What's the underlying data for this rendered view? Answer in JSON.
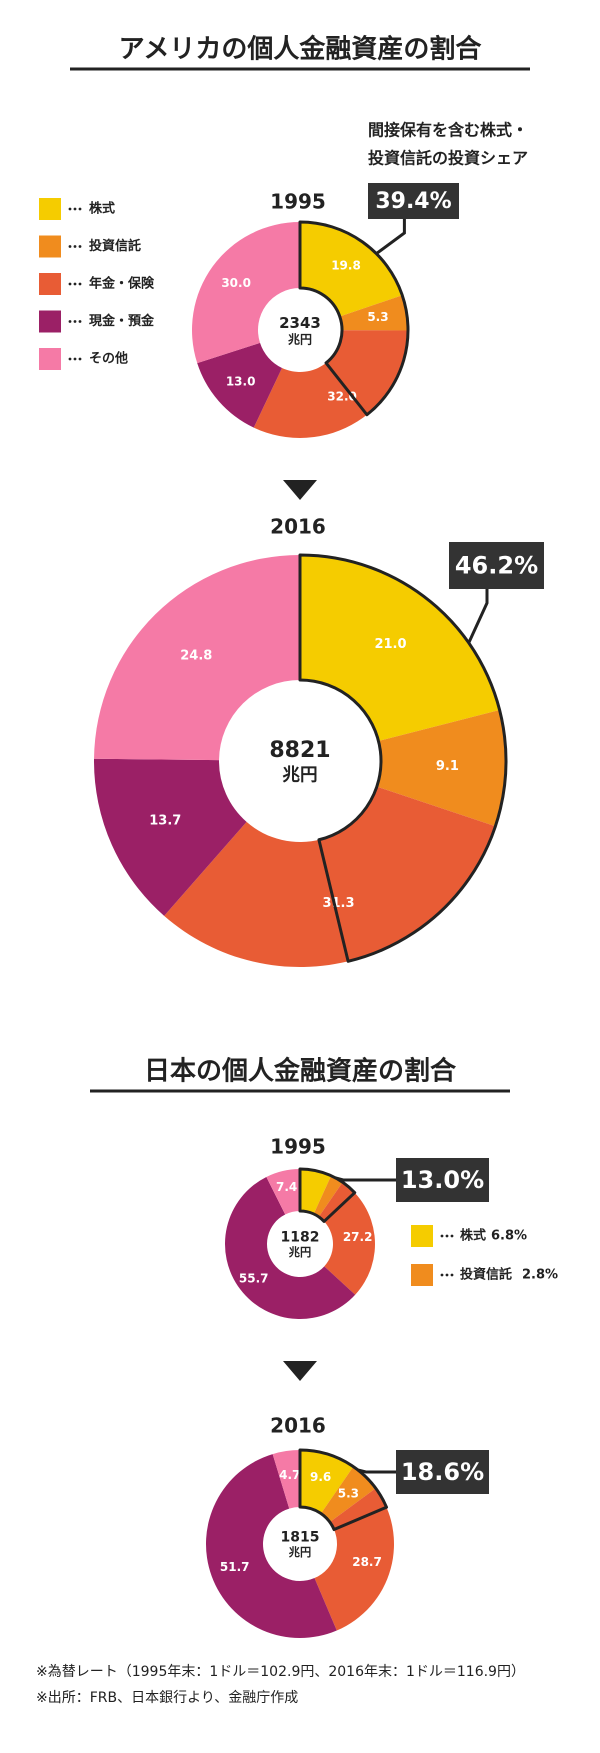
{
  "chart_data": [
    {
      "type": "pie",
      "section_title": "アメリカの個人金融資産の割合",
      "title": "1995",
      "categories": [
        "株式",
        "投資信託",
        "年金・保険",
        "現金・預金",
        "その他"
      ],
      "colors": [
        "#f5cc00",
        "#f08c1e",
        "#e85c35",
        "#9b2066",
        "#f57aa6"
      ],
      "values": [
        19.8,
        5.3,
        32.0,
        13.0,
        30.0
      ],
      "value_labels": [
        "19.8",
        "5.3",
        "32.0",
        "13.0",
        "30.0"
      ],
      "total": 2343,
      "total_unit": "兆円",
      "callout": {
        "text": [
          "間接保有を含む株式・",
          "投資信託の投資シェア"
        ],
        "value": 39.4,
        "label": "39.4%"
      }
    },
    {
      "type": "pie",
      "title": "2016",
      "colors": [
        "#f5cc00",
        "#f08c1e",
        "#e85c35",
        "#9b2066",
        "#f57aa6"
      ],
      "values": [
        21.0,
        9.1,
        31.3,
        13.7,
        24.8
      ],
      "value_labels": [
        "21.0",
        "9.1",
        "31.3",
        "13.7",
        "24.8"
      ],
      "total": 8821,
      "total_unit": "兆円",
      "callout": {
        "value": 46.2,
        "label": "46.2%"
      }
    },
    {
      "type": "pie",
      "section_title": "日本の個人金融資産の割合",
      "title": "1995",
      "colors": [
        "#f5cc00",
        "#f08c1e",
        "#e85c35",
        "#9b2066",
        "#f57aa6"
      ],
      "values": [
        6.8,
        2.8,
        27.2,
        55.7,
        7.4
      ],
      "value_labels": [
        null,
        null,
        "27.2",
        "55.7",
        "7.4"
      ],
      "total": 1182,
      "total_unit": "兆円",
      "callout": {
        "value": 13.0,
        "label": "13.0%"
      },
      "legend": [
        {
          "name": "株式",
          "label": "6.8%"
        },
        {
          "name": "投資信託",
          "label": "2.8%"
        }
      ]
    },
    {
      "type": "pie",
      "title": "2016",
      "colors": [
        "#f5cc00",
        "#f08c1e",
        "#e85c35",
        "#9b2066",
        "#f57aa6"
      ],
      "values": [
        9.6,
        5.3,
        28.7,
        51.7,
        4.7
      ],
      "value_labels": [
        "9.6",
        "5.3",
        "28.7",
        "51.7",
        "4.7"
      ],
      "total": 1815,
      "total_unit": "兆円",
      "callout": {
        "value": 18.6,
        "label": "18.6%"
      }
    }
  ],
  "footnotes": [
    "※為替レート（1995年末：1ドル＝102.9円、2016年末：1ドル＝116.9円）",
    "※出所：FRB、日本銀行より、金融庁作成"
  ]
}
